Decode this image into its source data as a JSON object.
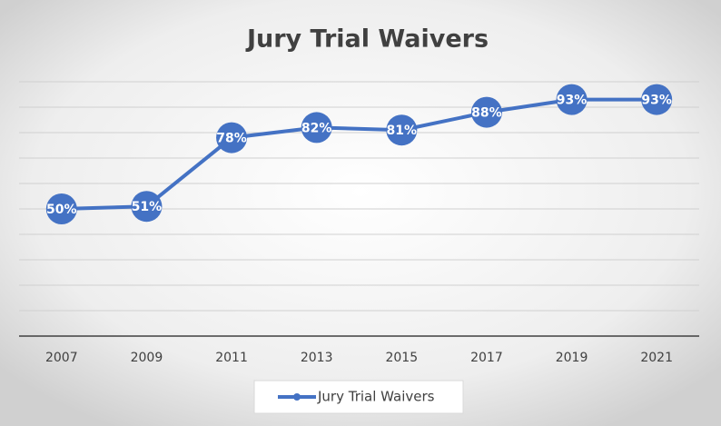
{
  "chart_data": {
    "type": "line",
    "title": "Jury Trial Waivers",
    "categories": [
      "2007",
      "2009",
      "2011",
      "2013",
      "2015",
      "2017",
      "2019",
      "2021"
    ],
    "series": [
      {
        "name": "Jury Trial Waivers",
        "color": "#4472c4",
        "values": [
          50,
          51,
          78,
          82,
          81,
          88,
          93,
          93
        ],
        "value_labels": [
          "50%",
          "51%",
          "78%",
          "82%",
          "81%",
          "88%",
          "93%",
          "93%"
        ]
      }
    ],
    "ylim": [
      0,
      100
    ],
    "yticks": [
      0,
      10,
      20,
      30,
      40,
      50,
      60,
      70,
      80,
      90,
      100
    ],
    "grid": true,
    "legend": "bottom"
  }
}
